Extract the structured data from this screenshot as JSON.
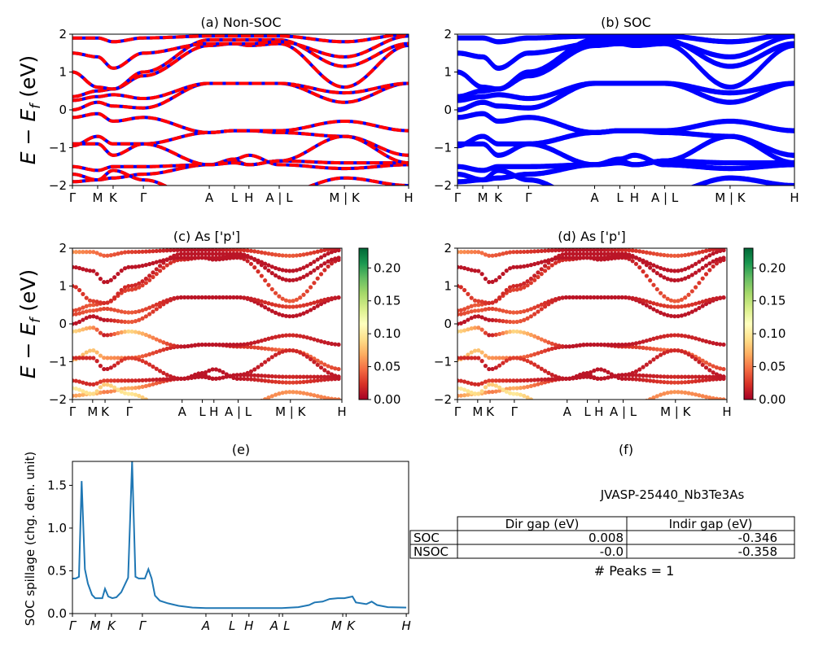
{
  "k_path": {
    "xlim": [
      0,
      100
    ],
    "ylim": [
      -2,
      2
    ],
    "yticks": [
      -2,
      -1,
      0,
      1,
      2
    ],
    "nodes": [
      0,
      7.5,
      12.1,
      21.1,
      40.7,
      48.2,
      52.5,
      61.5,
      80.9,
      100
    ],
    "node_labels": [
      "Γ",
      "M",
      "K",
      "Γ",
      "A",
      "L",
      "H",
      "A | L",
      "M | K",
      "H"
    ],
    "ylabel": "E − E",
    "ylabel_sub": "f",
    "ylabel_unit": " (eV)",
    "bands": [
      {
        "e": [
          -1.9,
          -1.85,
          -1.8,
          -1.7,
          -1.45,
          -1.3,
          -1.2,
          -1.45,
          -1.55,
          -1.45
        ],
        "w": [
          0.06,
          0.08,
          0.05,
          0.07,
          0.01,
          0.01,
          0.01,
          0.01,
          0.03,
          0.01
        ]
      },
      {
        "e": [
          -1.5,
          -1.6,
          -1.5,
          -1.5,
          -1.45,
          -1.35,
          -1.45,
          -1.35,
          -1.4,
          -1.4
        ],
        "w": [
          0.02,
          0.02,
          0.03,
          0.02,
          0.01,
          0.01,
          0.01,
          0.01,
          0.02,
          0.01
        ]
      },
      {
        "e": [
          -0.95,
          -0.7,
          -0.9,
          -0.9,
          -0.6,
          -0.55,
          -0.55,
          -0.6,
          -0.7,
          -1.2
        ],
        "w": [
          0.07,
          0.08,
          0.06,
          0.05,
          0.01,
          0.01,
          0.01,
          0.02,
          0.05,
          0.03
        ]
      },
      {
        "e": [
          -0.2,
          -0.1,
          -0.3,
          -0.2,
          -0.6,
          -0.55,
          -0.55,
          -0.55,
          -0.3,
          -0.55
        ],
        "w": [
          0.09,
          0.06,
          0.01,
          0.09,
          0.01,
          0.01,
          0.01,
          0.01,
          0.02,
          0.01
        ]
      },
      {
        "e": [
          0,
          0.2,
          0.1,
          0.05,
          0.7,
          0.7,
          0.7,
          0.7,
          0.2,
          0.7
        ],
        "w": [
          0.01,
          0.01,
          0.01,
          0.04,
          0.01,
          0.01,
          0.01,
          0.01,
          0.01,
          0.01
        ]
      },
      {
        "e": [
          0.25,
          0.35,
          0.4,
          0.3,
          0.7,
          0.7,
          0.7,
          0.7,
          0.45,
          0.7
        ],
        "w": [
          0.03,
          0.04,
          0.03,
          0.04,
          0.01,
          0.01,
          0.01,
          0.01,
          0.03,
          0.01
        ]
      },
      {
        "e": [
          0.35,
          0.5,
          0.55,
          0.9,
          1.7,
          1.75,
          1.7,
          1.75,
          0.6,
          1.7
        ],
        "w": [
          0.03,
          0.04,
          0.02,
          0.03,
          0.02,
          0.01,
          0.01,
          0.01,
          0.04,
          0.01
        ]
      },
      {
        "e": [
          1.0,
          0.6,
          0.55,
          1.0,
          1.85,
          1.85,
          1.85,
          1.85,
          1.15,
          1.75
        ],
        "w": [
          0.02,
          0.03,
          0.02,
          0.02,
          0.01,
          0.01,
          0.01,
          0.01,
          0.01,
          0.01
        ]
      },
      {
        "e": [
          1.5,
          1.4,
          1.1,
          1.5,
          1.75,
          1.75,
          1.75,
          1.8,
          1.4,
          1.95
        ],
        "w": [
          0.01,
          0.01,
          0.01,
          0.01,
          0.01,
          0.01,
          0.01,
          0.01,
          0.01,
          0.01
        ]
      },
      {
        "e": [
          1.9,
          1.9,
          1.8,
          1.9,
          1.95,
          1.95,
          1.95,
          1.95,
          1.8,
          2.0
        ],
        "w": [
          0.06,
          0.05,
          0.04,
          0.03,
          0.01,
          0.01,
          0.01,
          0.02,
          0.04,
          0.01
        ]
      },
      {
        "e": [
          -1.7,
          -1.85,
          -1.6,
          -1.85,
          -2.5,
          -2.5,
          -2.5,
          -2.2,
          -1.8,
          -2.0
        ],
        "w": [
          0.1,
          0.09,
          0.08,
          0.1,
          0.03,
          0.03,
          0.03,
          0.05,
          0.06,
          0.05
        ]
      },
      {
        "e": [
          -0.9,
          -0.9,
          -1.2,
          -0.9,
          -1.45,
          -1.4,
          -1.45,
          -1.35,
          -0.7,
          -1.4
        ],
        "w": [
          0.02,
          0.02,
          0.01,
          0.03,
          0.01,
          0.01,
          0.01,
          0.01,
          0.02,
          0.01
        ]
      }
    ]
  },
  "chart_data": [
    {
      "type": "line",
      "panel": "a",
      "title": "(a) Non-SOC",
      "colors": [
        "#ff0000",
        "#0000ff"
      ]
    },
    {
      "type": "line",
      "panel": "b",
      "title": "(b) SOC",
      "colors": [
        "#0000ff"
      ]
    },
    {
      "type": "scatter",
      "panel": "c",
      "title": "(c)  As ['p']",
      "colorbar": {
        "range": [
          0,
          0.23
        ],
        "ticks": [
          "0.00",
          "0.05",
          "0.10",
          "0.15",
          "0.20"
        ],
        "colormap": "RdYlGn"
      }
    },
    {
      "type": "scatter",
      "panel": "d",
      "title": "(d) As ['p']",
      "colorbar": {
        "range": [
          0,
          0.23
        ],
        "ticks": [
          "0.00",
          "0.05",
          "0.10",
          "0.15",
          "0.20"
        ],
        "colormap": "RdYlGn"
      }
    },
    {
      "type": "line",
      "panel": "e",
      "title": "(e)",
      "ylabel": "SOC spillage (chg. den. unit)",
      "xlim": [
        0,
        100
      ],
      "ylim": [
        0,
        1.78
      ],
      "yticks": [
        "0.0",
        "0.5",
        "1.0",
        "1.5"
      ],
      "xticks": [
        0,
        6.8,
        11.6,
        20.8,
        39.7,
        47.5,
        52.5,
        61.5,
        62.5,
        80.4,
        81.4,
        99.3
      ],
      "xtick_labels": [
        "Γ",
        "M",
        "K",
        "Γ",
        "A",
        "L",
        "H",
        "A",
        "L",
        "M",
        "K",
        "H"
      ],
      "color": "#1f77b4",
      "x": [
        0,
        0.97,
        1.94,
        2.74,
        3.71,
        4.6,
        5.81,
        6.78,
        8.88,
        9.69,
        10.66,
        11.87,
        13.08,
        14.53,
        16.55,
        17.76,
        18.73,
        19.7,
        21.55,
        22.6,
        23.57,
        24.54,
        26.0,
        28.4,
        31.6,
        35.7,
        39.7,
        62.3,
        67.2,
        70.4,
        72.0,
        74.4,
        76.5,
        78.9,
        80.9,
        83.3,
        84.3,
        87.4,
        89.0,
        90.6,
        93.8,
        99.3
      ],
      "y": [
        0.41,
        0.41,
        0.43,
        1.55,
        0.52,
        0.35,
        0.22,
        0.18,
        0.18,
        0.29,
        0.2,
        0.18,
        0.19,
        0.25,
        0.42,
        1.78,
        0.43,
        0.41,
        0.41,
        0.52,
        0.41,
        0.21,
        0.15,
        0.12,
        0.09,
        0.07,
        0.065,
        0.065,
        0.075,
        0.1,
        0.13,
        0.14,
        0.17,
        0.18,
        0.18,
        0.2,
        0.13,
        0.11,
        0.14,
        0.1,
        0.075,
        0.07
      ]
    },
    {
      "type": "table",
      "panel": "f",
      "title": "(f)",
      "material": "JVASP-25440_Nb3Te3As",
      "columns": [
        "Dir gap (eV)",
        "Indir gap (eV)"
      ],
      "rows": [
        {
          "label": "SOC",
          "values": [
            "0.008",
            "-0.346"
          ]
        },
        {
          "label": "NSOC",
          "values": [
            "-0.0",
            "-0.358"
          ]
        }
      ],
      "peaks": "# Peaks = 1"
    }
  ]
}
